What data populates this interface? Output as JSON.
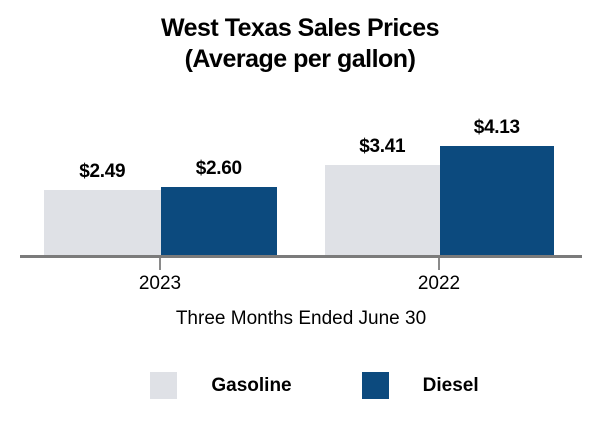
{
  "chart_data": {
    "type": "bar",
    "title": "West Texas Sales Prices",
    "subtitle": "(Average per gallon)",
    "xlabel": "Three Months Ended June 30",
    "categories": [
      "2023",
      "2022"
    ],
    "series": [
      {
        "name": "Gasoline",
        "color": "#dfe1e6",
        "values": [
          2.49,
          3.41
        ],
        "labels": [
          "$2.49",
          "$3.41"
        ]
      },
      {
        "name": "Diesel",
        "color": "#0c4a7e",
        "values": [
          2.6,
          4.13
        ],
        "labels": [
          "$2.60",
          "$4.13"
        ]
      }
    ],
    "value_prefix": "$",
    "axis_color": "#7b7b7b",
    "text_color": "#000000",
    "grid": false,
    "y_axis_visible": false,
    "legend_position": "bottom"
  }
}
